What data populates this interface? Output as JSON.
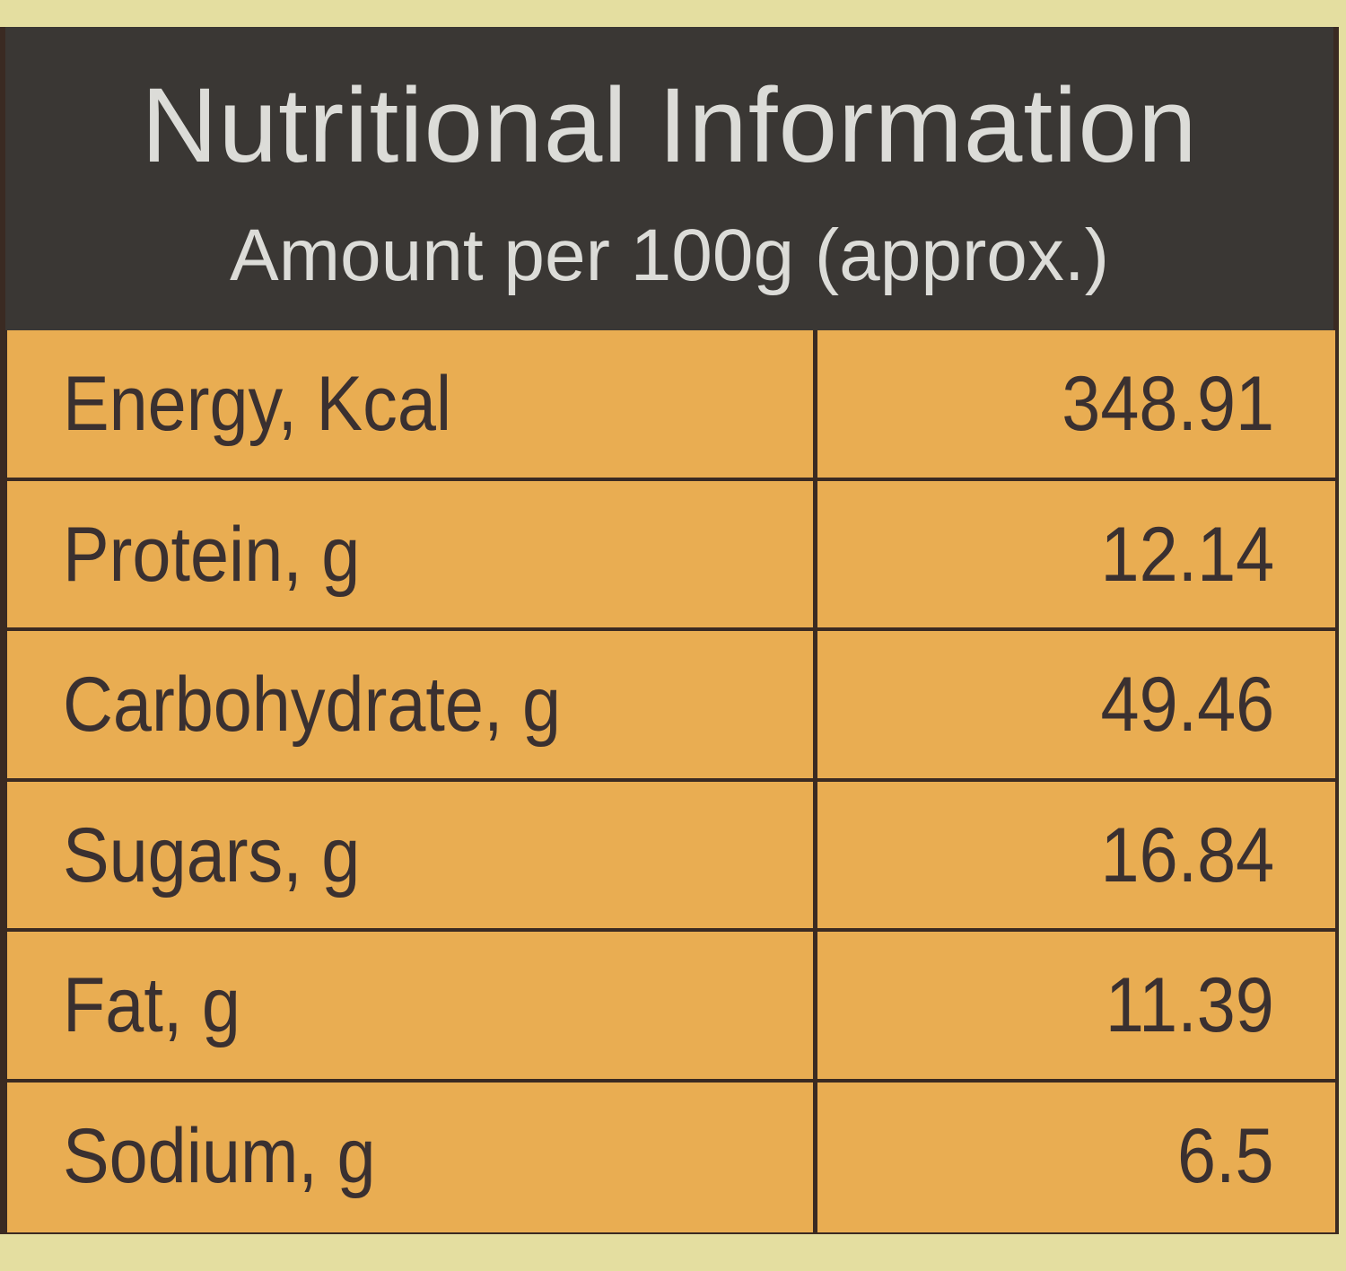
{
  "table": {
    "title": "Nutritional Information",
    "subtitle": "Amount per 100g (approx.)",
    "rows": [
      [
        "Energy, Kcal",
        "348.91"
      ],
      [
        "Protein, g",
        "12.14"
      ],
      [
        "Carbohydrate, g",
        "49.46"
      ],
      [
        "Sugars, g",
        "16.84"
      ],
      [
        "Fat, g",
        "11.39"
      ],
      [
        "Sodium, g",
        "6.5"
      ]
    ]
  }
}
